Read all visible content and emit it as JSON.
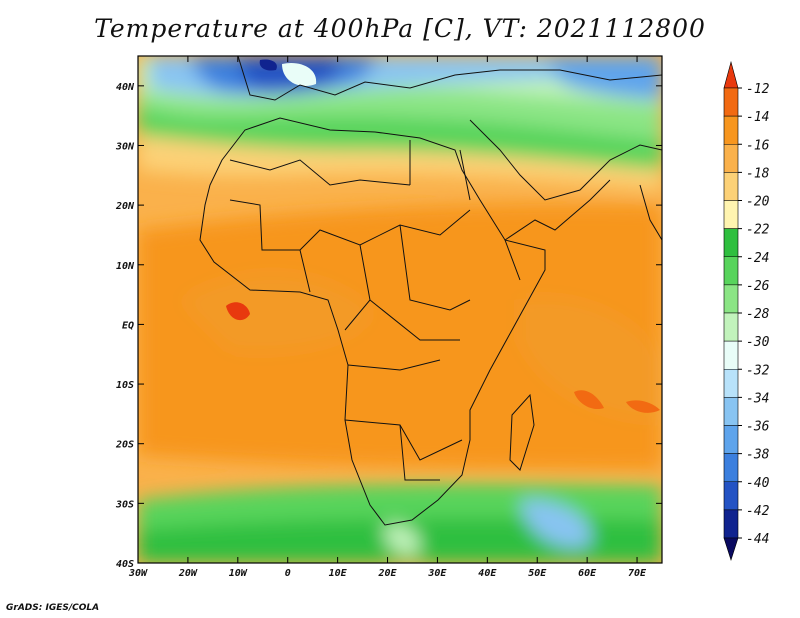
{
  "title": "Temperature at 400hPa [C], VT: 2021112800",
  "credit": "GrADS: IGES/COLA",
  "map": {
    "lon_range": [
      -30,
      75
    ],
    "lat_range": [
      -40,
      45
    ],
    "lon_ticks": [
      {
        "value": -30,
        "label": "30W"
      },
      {
        "value": -20,
        "label": "20W"
      },
      {
        "value": -10,
        "label": "10W"
      },
      {
        "value": 0,
        "label": "0"
      },
      {
        "value": 10,
        "label": "10E"
      },
      {
        "value": 20,
        "label": "20E"
      },
      {
        "value": 30,
        "label": "30E"
      },
      {
        "value": 40,
        "label": "40E"
      },
      {
        "value": 50,
        "label": "50E"
      },
      {
        "value": 60,
        "label": "60E"
      },
      {
        "value": 70,
        "label": "70E"
      }
    ],
    "lat_ticks": [
      {
        "value": 40,
        "label": "40N"
      },
      {
        "value": 30,
        "label": "30N"
      },
      {
        "value": 20,
        "label": "20N"
      },
      {
        "value": 10,
        "label": "10N"
      },
      {
        "value": 0,
        "label": "EQ"
      },
      {
        "value": -10,
        "label": "10S"
      },
      {
        "value": -20,
        "label": "20S"
      },
      {
        "value": -30,
        "label": "30S"
      },
      {
        "value": -40,
        "label": "40S"
      }
    ]
  },
  "colorbar": {
    "levels": [
      -12,
      -14,
      -16,
      -18,
      -20,
      -22,
      -24,
      -26,
      -28,
      -30,
      -32,
      -34,
      -36,
      -38,
      -40,
      -42,
      -44
    ],
    "colors": [
      "#e8390e",
      "#f26a12",
      "#f7961f",
      "#fab14b",
      "#fcd177",
      "#fff4b0",
      "#2fbf3f",
      "#58d45c",
      "#8be585",
      "#c2f3bc",
      "#e9fdf8",
      "#b8e2fa",
      "#88c4f2",
      "#5ea4ec",
      "#3b7fde",
      "#2453c4",
      "#10238f",
      "#0a0a60"
    ]
  }
}
